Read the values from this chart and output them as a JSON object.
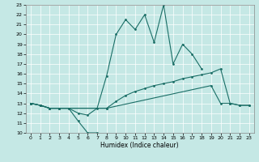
{
  "title": "",
  "xlabel": "Humidex (Indice chaleur)",
  "xlim": [
    -0.5,
    23.5
  ],
  "ylim": [
    10,
    23
  ],
  "bg_color": "#c5e8e5",
  "line_color": "#1a6e66",
  "grid_color": "#ffffff",
  "xticks": [
    0,
    1,
    2,
    3,
    4,
    5,
    6,
    7,
    8,
    9,
    10,
    11,
    12,
    13,
    14,
    15,
    16,
    17,
    18,
    19,
    20,
    21,
    22,
    23
  ],
  "yticks": [
    10,
    11,
    12,
    13,
    14,
    15,
    16,
    17,
    18,
    19,
    20,
    21,
    22,
    23
  ],
  "line1_x": [
    0,
    1,
    2,
    3,
    4,
    5,
    6,
    7
  ],
  "line1_y": [
    13.0,
    12.8,
    12.5,
    12.5,
    12.5,
    11.2,
    10.0,
    10.0
  ],
  "line2_x": [
    0,
    1,
    2,
    3,
    8,
    9,
    10,
    11,
    12,
    13,
    14,
    15,
    16,
    17,
    18,
    19,
    20,
    21,
    22,
    23
  ],
  "line2_y": [
    13.0,
    12.8,
    12.5,
    12.5,
    12.5,
    13.2,
    13.8,
    14.2,
    14.5,
    14.8,
    15.0,
    15.2,
    15.5,
    15.7,
    15.9,
    16.1,
    16.5,
    13.0,
    12.8,
    12.8
  ],
  "line3_x": [
    0,
    1,
    2,
    3,
    8,
    19,
    20,
    21,
    22,
    23
  ],
  "line3_y": [
    13.0,
    12.8,
    12.5,
    12.5,
    12.5,
    14.8,
    13.0,
    13.0,
    12.8,
    12.8
  ],
  "line4_x": [
    0,
    1,
    2,
    3,
    4,
    5,
    6,
    7,
    8,
    9,
    10,
    11,
    12,
    13,
    14,
    15,
    16,
    17,
    18
  ],
  "line4_y": [
    13.0,
    12.8,
    12.5,
    12.5,
    12.5,
    12.0,
    11.8,
    12.5,
    15.8,
    20.0,
    21.5,
    20.5,
    22.0,
    19.2,
    23.0,
    17.0,
    19.0,
    18.0,
    16.5
  ]
}
